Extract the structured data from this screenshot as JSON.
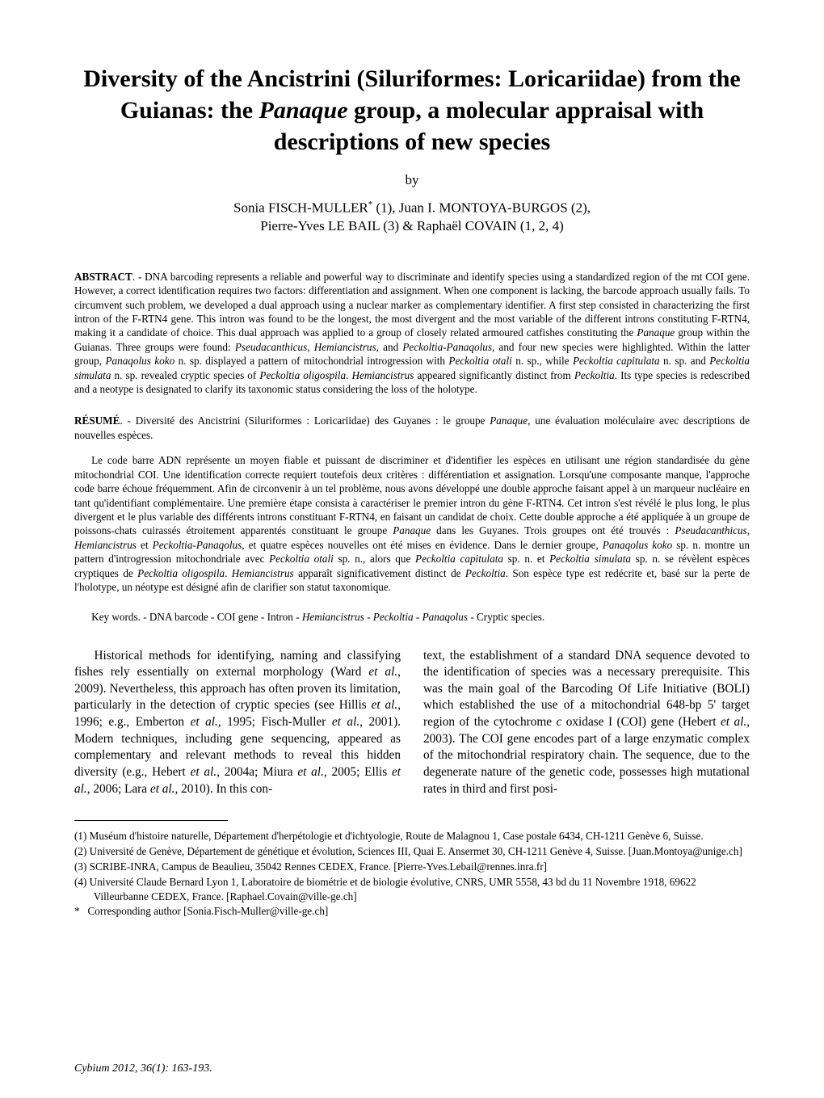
{
  "title": "Diversity of the Ancistrini (Siluriformes: Loricariidae) from the Guianas: the <i>Panaque</i> group, a molecular appraisal with descriptions of new species",
  "by": "by",
  "authors_line1": "Sonia FISCH-MULLER<sup>*</sup> (1), Juan I. MONTOYA-BURGOS (2),",
  "authors_line2": "Pierre-Yves LE BAIL (3) & Raphaël COVAIN (1, 2, 4)",
  "abstract_label": "ABSTRACT",
  "abstract_text": ". - DNA barcoding represents a reliable and powerful way to discriminate and identify species using a standardized region of the mt COI gene. However, a correct identification requires two factors: differentiation and assignment. When one component is lacking, the barcode approach usually fails. To circumvent such problem, we developed a dual approach using a nuclear marker as complementary identifier. A first step consisted in characterizing the first intron of the F-RTN4 gene. This intron was found to be the longest, the most divergent and the most variable of the different introns constituting F-RTN4, making it a candidate of choice. This dual approach was applied to a group of closely related armoured catfishes constituting the <i>Panaque</i> group within the Guianas. Three groups were found: <i>Pseudacanthicus</i>, <i>Hemiancistrus</i>, and <i>Peckoltia-Panaqolus</i>, and four new species were highlighted. Within the latter group, <i>Panaqolus koko</i> n. sp. displayed a pattern of mitochondrial introgression with <i>Peckoltia otali</i> n. sp., while <i>Peckoltia capitulata</i> n. sp. and <i>Peckoltia simulata</i> n. sp. revealed cryptic species of <i>Peckoltia oligospila</i>. <i>Hemiancistrus</i> appeared significantly distinct from <i>Peckoltia</i>. Its type species is redescribed and a neotype is designated to clarify its taxonomic status considering the loss of the holotype.",
  "resume_label": "RÉSUMÉ",
  "resume_lead": ". - Diversité des Ancistrini (Siluriformes : Loricariidae) des Guyanes : le groupe <i>Panaque</i>, une évaluation moléculaire avec descriptions de nouvelles espèces.",
  "resume_body": "Le code barre ADN représente un moyen fiable et puissant de discriminer et d'identifier les espèces en utilisant une région standardisée du gène mitochondrial COI. Une identification correcte requiert toutefois deux critères : différentiation et assignation. Lorsqu'une composante manque, l'approche code barre échoue fréquemment. Afin de circonvenir à un tel problème, nous avons développé une double approche faisant appel à un marqueur nucléaire en tant qu'identifiant complémentaire. Une première étape consista à caractériser le premier intron du gène F-RTN4. Cet intron s'est révélé le plus long, le plus divergent et le plus variable des différents introns constituant F-RTN4, en faisant un candidat de choix. Cette double approche a été appliquée à un groupe de poissons-chats cuirassés étroitement apparentés constituant le groupe <i>Panaque</i> dans les Guyanes. Trois groupes ont été trouvés : <i>Pseudacanthicus</i>, <i>Hemiancistrus</i> et <i>Peckoltia-Panaqolus</i>, et quatre espèces nouvelles ont été mises en évidence. Dans le dernier groupe, <i>Panaqolus koko</i> sp. n. montre un pattern d'introgression mitochondriale avec <i>Peckoltia otali</i> sp. n., alors que <i>Peckoltia capitulata</i> sp. n. et <i>Peckoltia simulata</i> sp. n. se révèlent espèces cryptiques de <i>Peckoltia oligospila</i>. <i>Hemiancistrus</i> apparaît significativement distinct de <i>Peckoltia</i>. Son espèce type est redécrite et, basé sur la perte de l'holotype, un néotype est désigné afin de clarifier son statut taxonomique.",
  "keywords": "Key words. - DNA barcode - COI gene - Intron - <i>Hemiancistrus</i> - <i>Peckoltia</i> - <i>Panaqolus</i> - Cryptic species.",
  "body_col1": "Historical methods for identifying, naming and classifying fishes rely essentially on external morphology (Ward <i>et al.</i>, 2009). Nevertheless, this approach has often proven its limitation, particularly in the detection of cryptic species (see Hillis <i>et al.</i>, 1996; e.g., Emberton <i>et al.</i>, 1995; Fisch-Muller <i>et al.</i>, 2001). Modern techniques, including gene sequencing, appeared as complementary and relevant methods to reveal this hidden diversity (e.g., Hebert <i>et al.</i>, 2004a; Miura <i>et al.</i>, 2005; Ellis <i>et al.</i>, 2006; Lara <i>et al.</i>, 2010). In this con-",
  "body_col2": "text, the establishment of a standard DNA sequence devoted to the identification of species was a necessary prerequisite. This was the main goal of the Barcoding Of Life Initiative (BOLI) which established the use of a mitochondrial 648-bp 5' target region of the cytochrome <i>c</i> oxidase I (COI) gene (Hebert <i>et al.</i>, 2003). The COI gene encodes part of a large enzymatic complex of the mitochondrial respiratory chain. The sequence, due to the degenerate nature of the genetic code, possesses high mutational rates in third and first posi-",
  "footnotes": {
    "n1": "(1) Muséum d'histoire naturelle, Département d'herpétologie et d'ichtyologie, Route de Malagnou 1, Case postale 6434, CH-1211 Genève 6, Suisse.",
    "n2": "(2) Université de Genève, Département de génétique et évolution, Sciences III, Quai E. Ansermet 30, CH-1211 Genève 4, Suisse. [Juan.Montoya@unige.ch]",
    "n3": "(3) SCRIBE-INRA, Campus de Beaulieu, 35042 Rennes CEDEX, France. [Pierre-Yves.Lebail@rennes.inra.fr]",
    "n4": "(4) Université Claude Bernard Lyon 1, Laboratoire de biométrie et de biologie évolutive, CNRS, UMR 5558, 43 bd du 11 Novembre 1918, 69622 Villeurbanne CEDEX, France. [Raphael.Covain@ville-ge.ch]",
    "corr": "*&nbsp;&nbsp;&nbsp;Corresponding author [Sonia.Fisch-Muller@ville-ge.ch]"
  },
  "footer": "Cybium 2012, 36(1): 163-193."
}
